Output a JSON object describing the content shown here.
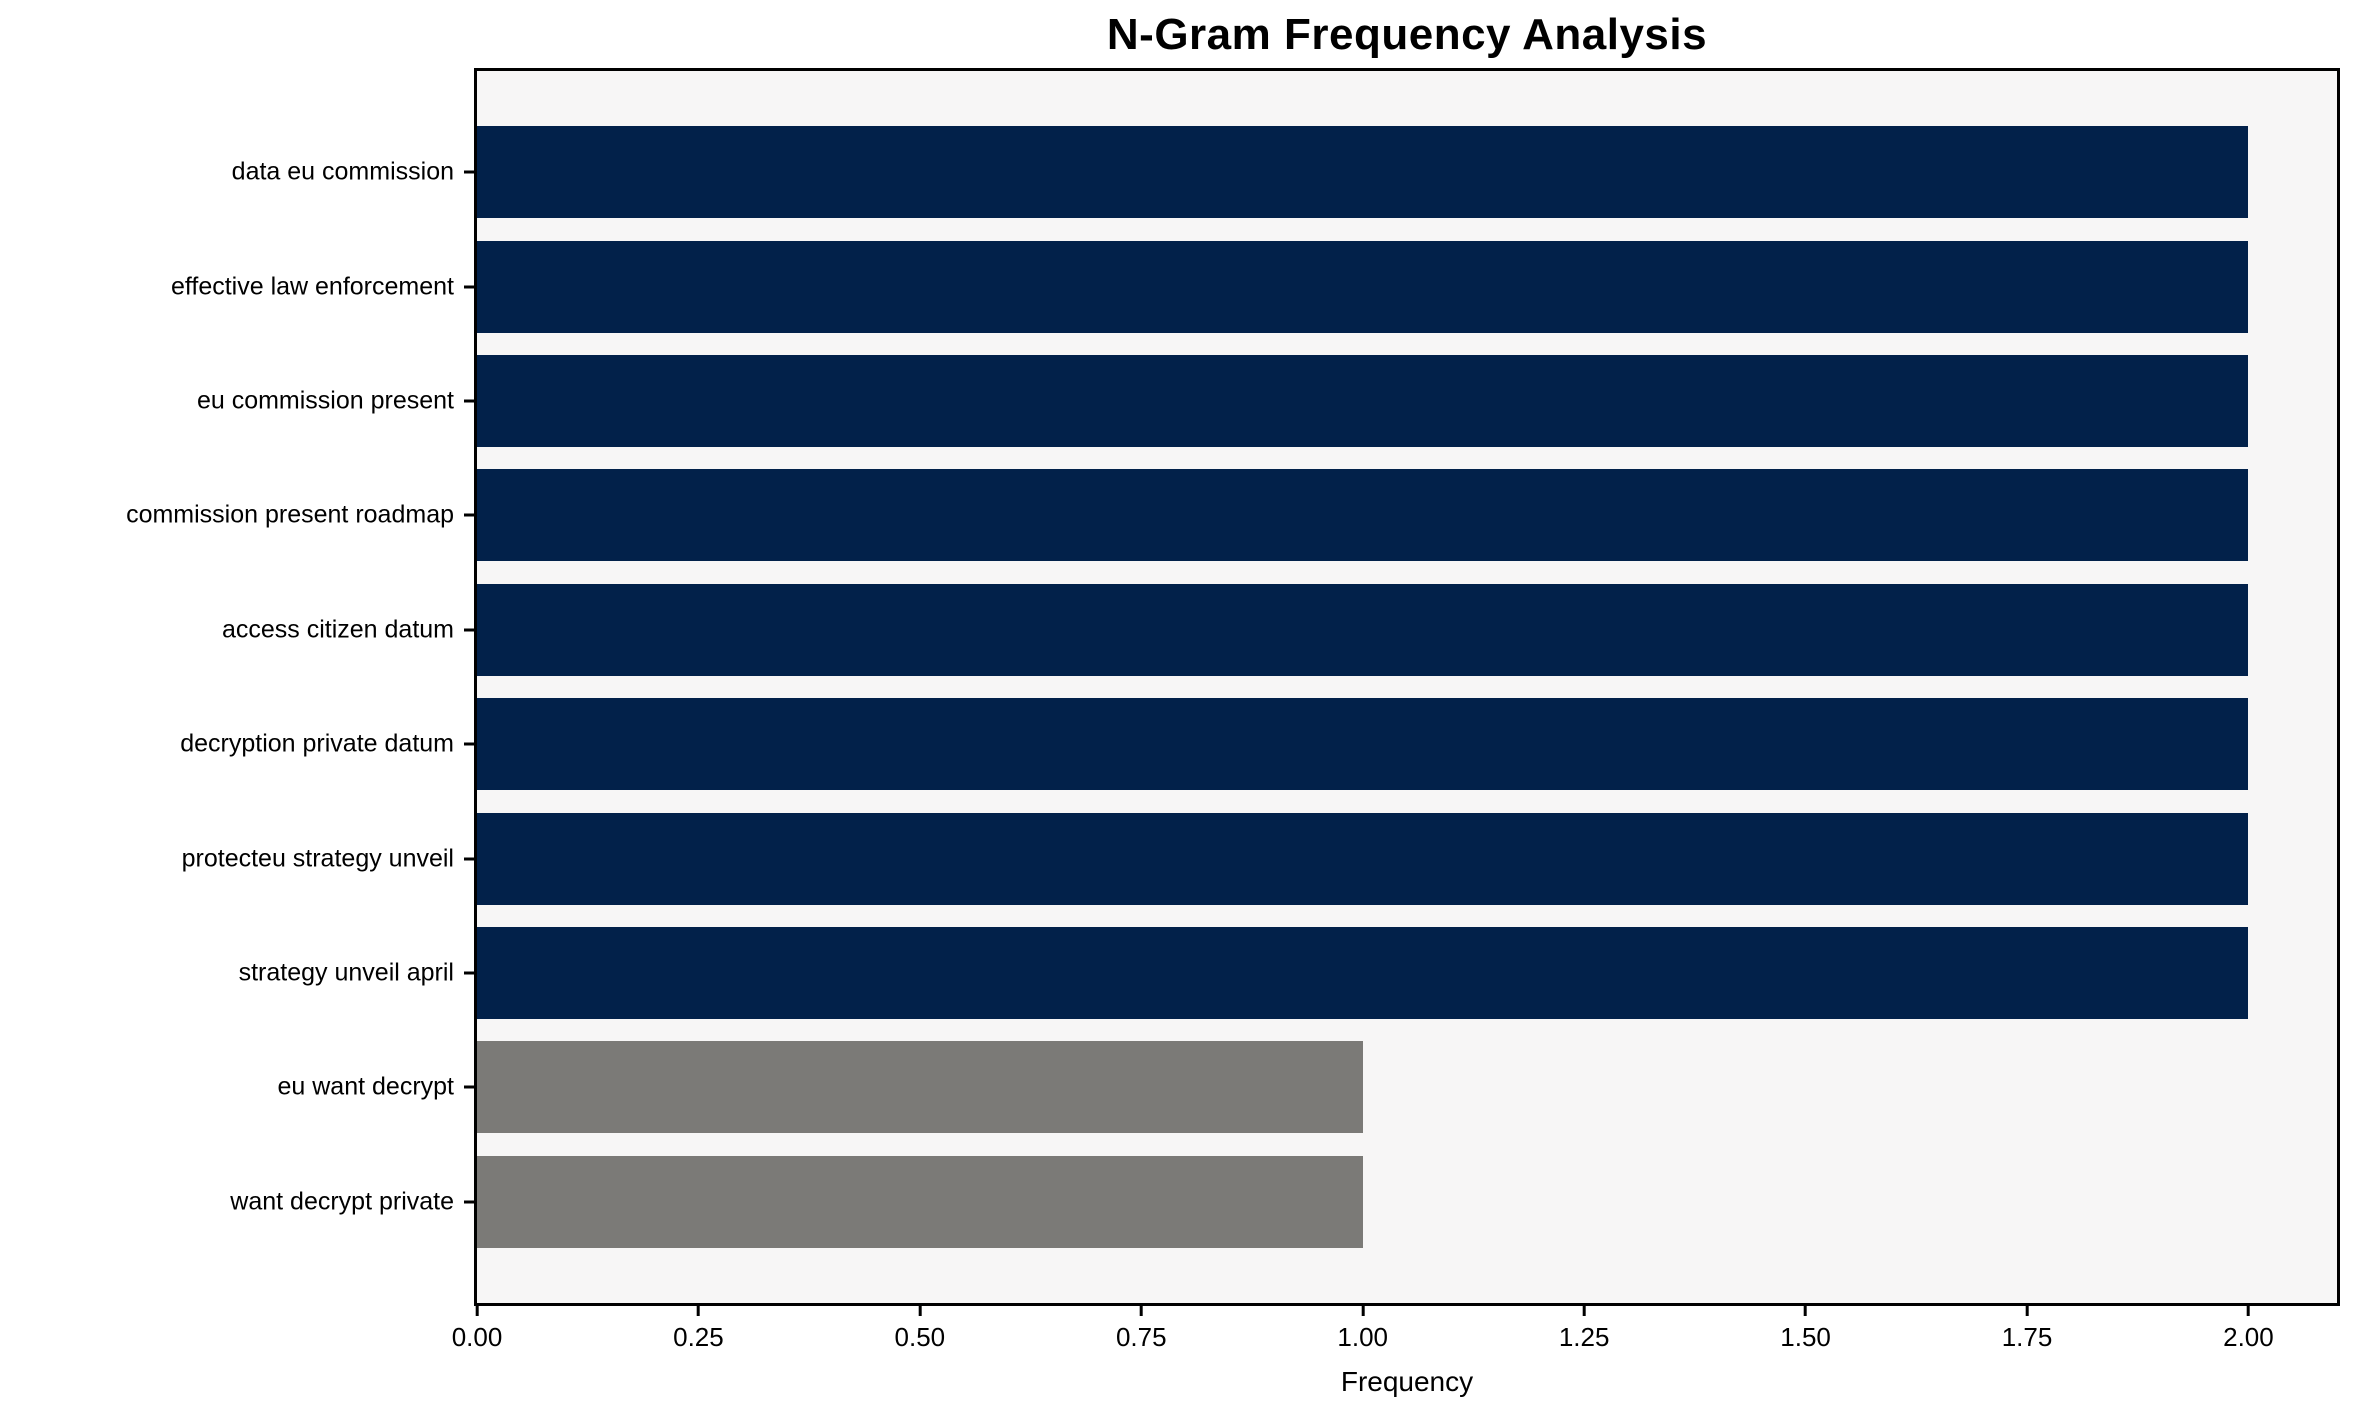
{
  "title": "N-Gram Frequency Analysis",
  "chart_data": {
    "type": "bar",
    "orientation": "horizontal",
    "title": "N-Gram Frequency Analysis",
    "xlabel": "Frequency",
    "ylabel": "",
    "categories": [
      "data eu commission",
      "effective law enforcement",
      "eu commission present",
      "commission present roadmap",
      "access citizen datum",
      "decryption private datum",
      "protecteu strategy unveil",
      "strategy unveil april",
      "eu want decrypt",
      "want decrypt private"
    ],
    "values": [
      2,
      2,
      2,
      2,
      2,
      2,
      2,
      2,
      1,
      1
    ],
    "bar_colors": [
      "#02214a",
      "#02214a",
      "#02214a",
      "#02214a",
      "#02214a",
      "#02214a",
      "#02214a",
      "#02214a",
      "#7b7a77",
      "#7b7a77"
    ],
    "xlim": [
      0,
      2.1
    ],
    "xticks": [
      {
        "value": 0.0,
        "label": "0.00"
      },
      {
        "value": 0.25,
        "label": "0.25"
      },
      {
        "value": 0.5,
        "label": "0.50"
      },
      {
        "value": 0.75,
        "label": "0.75"
      },
      {
        "value": 1.0,
        "label": "1.00"
      },
      {
        "value": 1.25,
        "label": "1.25"
      },
      {
        "value": 1.5,
        "label": "1.50"
      },
      {
        "value": 1.75,
        "label": "1.75"
      },
      {
        "value": 2.0,
        "label": "2.00"
      }
    ],
    "grid": false,
    "legend": null,
    "colors": {
      "high_freq_bar": "#02214a",
      "low_freq_bar": "#7b7a77",
      "plot_background": "#f7f6f6",
      "page_background": "#ffffff",
      "axis": "#000000"
    }
  }
}
